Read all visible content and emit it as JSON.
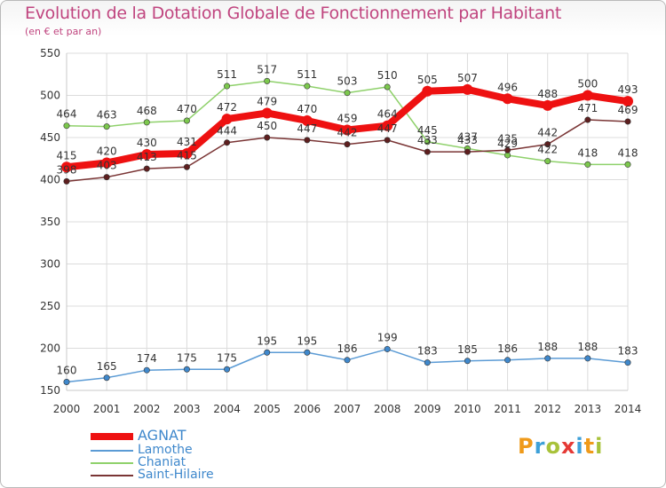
{
  "title": "Evolution de la Dotation Globale de Fonctionnement par Habitant",
  "subtitle": "(en € et par an)",
  "brand": {
    "letters": [
      "P",
      "r",
      "o",
      "x",
      "i",
      "t",
      "i"
    ],
    "colors": [
      "#ef9a1a",
      "#3da0d8",
      "#a8c23a",
      "#e53935",
      "#3da0d8",
      "#ef9a1a",
      "#a8c23a"
    ]
  },
  "chart_data": {
    "type": "line",
    "x": [
      "2000",
      "2001",
      "2002",
      "2003",
      "2004",
      "2005",
      "2006",
      "2007",
      "2008",
      "2009",
      "2010",
      "2011",
      "2012",
      "2013",
      "2014"
    ],
    "ylim": [
      150,
      550
    ],
    "yticks": [
      150,
      200,
      250,
      300,
      350,
      400,
      450,
      500,
      550
    ],
    "grid": true,
    "legend_position": "bottom-left",
    "series": [
      {
        "name": "AGNAT",
        "color": "#ee1111",
        "marker": "#ee1111",
        "values": [
          415,
          420,
          430,
          431,
          472,
          479,
          470,
          459,
          464,
          505,
          507,
          496,
          488,
          500,
          493
        ],
        "labels": [
          "415",
          "420",
          "430",
          "431",
          "472",
          "479",
          "470",
          "459",
          "464",
          "505",
          "507",
          "496",
          "488",
          "500",
          "493"
        ]
      },
      {
        "name": "Lamothe",
        "color": "#5b9bd5",
        "marker": "#3f88cc",
        "values": [
          160,
          165,
          174,
          175,
          175,
          195,
          195,
          186,
          199,
          183,
          185,
          186,
          188,
          188,
          183
        ],
        "labels": [
          "160",
          "165",
          "174",
          "175",
          "175",
          "195",
          "195",
          "186",
          "199",
          "183",
          "185",
          "186",
          "188",
          "188",
          "183"
        ]
      },
      {
        "name": "Chaniat",
        "color": "#8fd16b",
        "marker": "#7cc84d",
        "values": [
          464,
          463,
          468,
          470,
          511,
          517,
          511,
          503,
          510,
          445,
          437,
          429,
          422,
          418,
          418
        ],
        "labels": [
          "464",
          "463",
          "468",
          "470",
          "511",
          "517",
          "511",
          "503",
          "510",
          "445",
          "437",
          "429",
          "422",
          "418",
          "418"
        ]
      },
      {
        "name": "Saint-Hilaire",
        "color": "#7a3535",
        "marker": "#5e1f1f",
        "values": [
          398,
          403,
          413,
          415,
          444,
          450,
          447,
          442,
          447,
          433,
          433,
          435,
          442,
          471,
          469
        ],
        "labels": [
          "398",
          "403",
          "413",
          "415",
          "444",
          "450",
          "447",
          "442",
          "447",
          "433",
          "433",
          "435",
          "442",
          "471",
          "469"
        ]
      }
    ]
  }
}
